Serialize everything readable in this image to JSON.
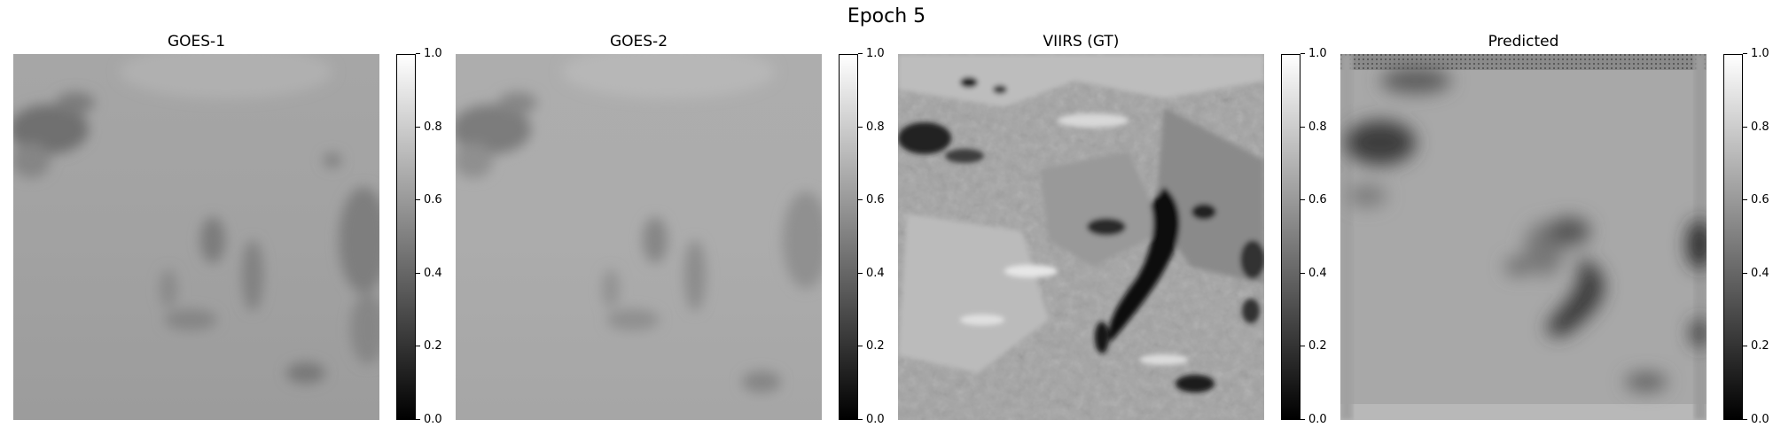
{
  "figure": {
    "title": "Epoch 5"
  },
  "panels": [
    {
      "title": "GOES-1"
    },
    {
      "title": "GOES-2"
    },
    {
      "title": "VIIRS (GT)"
    },
    {
      "title": "Predicted"
    }
  ],
  "colorbar": {
    "colormap": "gray",
    "range": [
      0.0,
      1.0
    ],
    "ticks": [
      "0.0",
      "0.2",
      "0.4",
      "0.6",
      "0.8",
      "1.0"
    ]
  }
}
